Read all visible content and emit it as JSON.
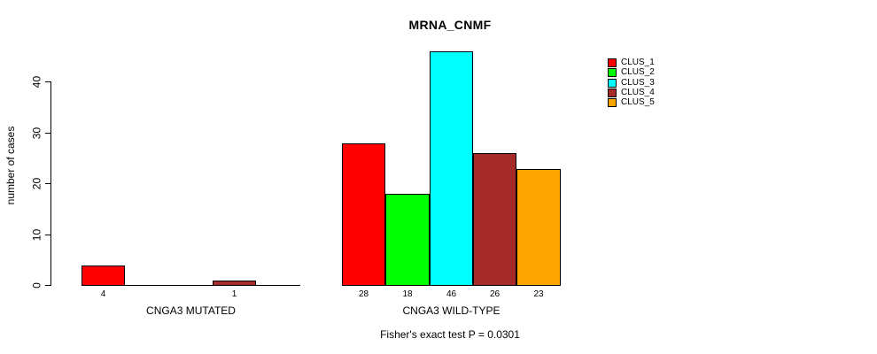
{
  "chart_data": {
    "type": "bar",
    "title": "MRNA_CNMF",
    "ylabel": "number of cases",
    "ylim": [
      0,
      46
    ],
    "yticks": [
      0,
      10,
      20,
      30,
      40
    ],
    "grid": false,
    "legend_position": "right",
    "series": [
      {
        "name": "CLUS_1",
        "color": "#FF0000"
      },
      {
        "name": "CLUS_2",
        "color": "#00FF00"
      },
      {
        "name": "CLUS_3",
        "color": "#00FFFF"
      },
      {
        "name": "CLUS_4",
        "color": "#A52A2A"
      },
      {
        "name": "CLUS_5",
        "color": "#FFA500"
      }
    ],
    "groups": [
      {
        "label": "CNGA3 MUTATED",
        "values": [
          4,
          0,
          0,
          1,
          0
        ],
        "bar_labels": [
          "4",
          "",
          "",
          "1",
          ""
        ]
      },
      {
        "label": "CNGA3 WILD-TYPE",
        "values": [
          28,
          18,
          46,
          26,
          23
        ],
        "bar_labels": [
          "28",
          "18",
          "46",
          "26",
          "23"
        ]
      }
    ],
    "annotation": "Fisher's exact test P = 0.0301"
  }
}
